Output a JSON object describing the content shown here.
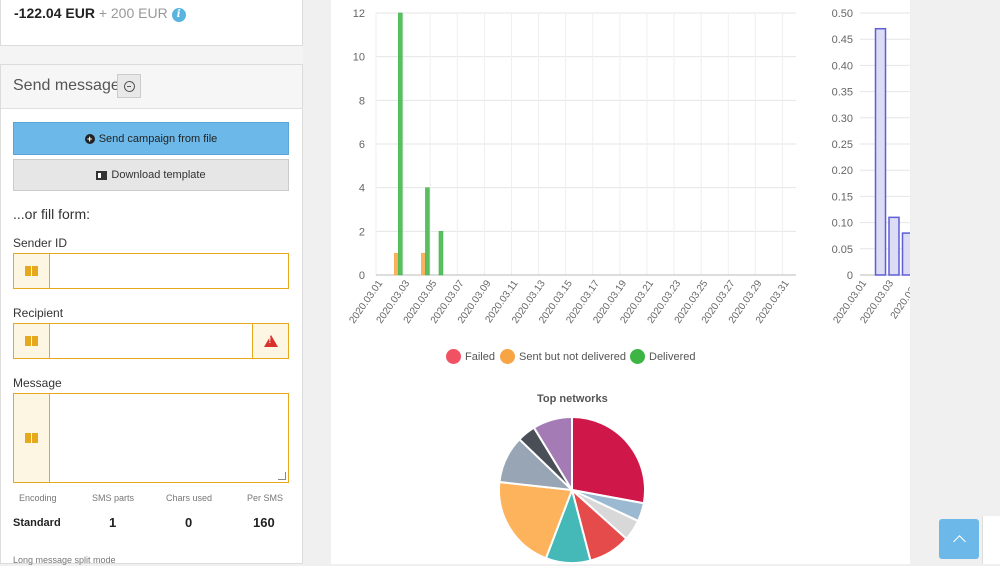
{
  "balance": {
    "amount": "-122.04 EUR",
    "credit": "+ 200 EUR",
    "info_icon": "info-icon"
  },
  "send_message": {
    "title": "Send message",
    "campaign_btn": "Send campaign from file",
    "template_btn": "Download template",
    "or_fill": "...or fill form:",
    "sender_label": "Sender ID",
    "recipient_label": "Recipient",
    "message_label": "Message",
    "sender_value": "",
    "recipient_value": "",
    "message_value": ""
  },
  "stats": {
    "headers": [
      "Encoding",
      "SMS parts",
      "Chars used",
      "Per SMS"
    ],
    "values": [
      "Standard",
      "1",
      "0",
      "160"
    ]
  },
  "long_message": "Long message split mode",
  "colors": {
    "failed": "#f05264",
    "sent": "#f7a544",
    "delivered": "#3cb545",
    "accent": "#6cb9e9",
    "warn": "#e6a91e"
  },
  "chart_data": [
    {
      "type": "bar",
      "categories": [
        "2020.03.01",
        "2020.03.02",
        "2020.03.03",
        "2020.03.04",
        "2020.03.05",
        "2020.03.06",
        "2020.03.07",
        "2020.03.08",
        "2020.03.09",
        "2020.03.10",
        "2020.03.11",
        "2020.03.12",
        "2020.03.13",
        "2020.03.14",
        "2020.03.15",
        "2020.03.16",
        "2020.03.17",
        "2020.03.18",
        "2020.03.19",
        "2020.03.20",
        "2020.03.21",
        "2020.03.22",
        "2020.03.23",
        "2020.03.24",
        "2020.03.25",
        "2020.03.26",
        "2020.03.27",
        "2020.03.28",
        "2020.03.29",
        "2020.03.30",
        "2020.03.31"
      ],
      "tick_labels": [
        "2020.03.01",
        "2020.03.03",
        "2020.03.05",
        "2020.03.07",
        "2020.03.09",
        "2020.03.11",
        "2020.03.13",
        "2020.03.15",
        "2020.03.17",
        "2020.03.19",
        "2020.03.21",
        "2020.03.23",
        "2020.03.25",
        "2020.03.27",
        "2020.03.29",
        "2020.03.31"
      ],
      "series": [
        {
          "name": "Failed",
          "values": [
            0,
            0,
            0,
            0,
            0,
            0,
            0,
            0,
            0,
            0,
            0,
            0,
            0,
            0,
            0,
            0,
            0,
            0,
            0,
            0,
            0,
            0,
            0,
            0,
            0,
            0,
            0,
            0,
            0,
            0,
            0
          ]
        },
        {
          "name": "Sent but not delivered",
          "values": [
            0,
            1,
            0,
            1,
            0,
            0,
            0,
            0,
            0,
            0,
            0,
            0,
            0,
            0,
            0,
            0,
            0,
            0,
            0,
            0,
            0,
            0,
            0,
            0,
            0,
            0,
            0,
            0,
            0,
            0,
            0
          ]
        },
        {
          "name": "Delivered",
          "values": [
            0,
            12,
            0,
            4,
            2,
            0,
            0,
            0,
            0,
            0,
            0,
            0,
            0,
            0,
            0,
            0,
            0,
            0,
            0,
            0,
            0,
            0,
            0,
            0,
            0,
            0,
            0,
            0,
            0,
            0,
            0
          ]
        }
      ],
      "yticks": [
        "0",
        "2",
        "4",
        "6",
        "8",
        "10",
        "12"
      ],
      "ylim": [
        0,
        12
      ],
      "legend": "bottom",
      "grid": true
    },
    {
      "type": "bar",
      "categories": [
        "2020.03.01",
        "2020.03.02",
        "2020.03.03",
        "2020.03.04"
      ],
      "tick_labels": [
        "2020.03.01",
        "2020.03.03",
        "2020.03.0"
      ],
      "values": [
        0,
        0.47,
        0.11,
        0.08
      ],
      "yticks": [
        "0",
        "0.05",
        "0.10",
        "0.15",
        "0.20",
        "0.25",
        "0.30",
        "0.35",
        "0.40",
        "0.45",
        "0.50"
      ],
      "ylim": [
        0,
        0.5
      ],
      "grid": true
    },
    {
      "type": "pie",
      "title": "Top networks",
      "values": [
        24,
        3.5,
        4,
        8,
        8.5,
        18,
        9,
        3.5,
        7.5
      ],
      "colors": [
        "#d0174a",
        "#9bbad1",
        "#d8d8d8",
        "#e64b4b",
        "#45b8b8",
        "#fdb25c",
        "#98a5b4",
        "#4a4f57",
        "#a47bb5"
      ]
    }
  ]
}
